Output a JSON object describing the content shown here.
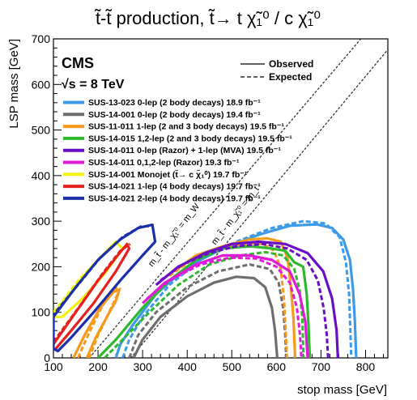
{
  "title": "t̃-t̃ production,  t̃→ t χ̃₁⁰ / c χ̃₁⁰",
  "experiment": "CMS",
  "energy": "√s = 8 TeV",
  "style_legend": {
    "observed": "Observed",
    "expected": "Expected"
  },
  "diagonal_labels": {
    "mw": "m_t̃ - m_χ̃₁⁰ = m_W",
    "mt": "m_t̃ - m_χ̃₁⁰ = m_t"
  },
  "chart_data": {
    "type": "line",
    "title": "t̃-t̃ production,  t̃→ t χ̃₁⁰ / c χ̃₁⁰",
    "xlabel": "stop mass [GeV]",
    "ylabel": "LSP mass [GeV]",
    "xlim": [
      100,
      850
    ],
    "ylim": [
      0,
      700
    ],
    "xticks": [
      100,
      200,
      300,
      400,
      500,
      600,
      700,
      800
    ],
    "yticks": [
      0,
      100,
      200,
      300,
      400,
      500,
      600,
      700
    ],
    "grid": false,
    "legend_position": "top-left",
    "diagonals": [
      {
        "offset": 80.4,
        "label": "mw"
      },
      {
        "offset": 173.5,
        "label": "mt"
      }
    ],
    "series": [
      {
        "name": "SUS-13-023 0-lep (2 body decays) 18.9 fb⁻¹",
        "color": "#3c9ae8",
        "observed": [
          [
            240,
            0
          ],
          [
            250,
            30
          ],
          [
            280,
            75
          ],
          [
            330,
            140
          ],
          [
            400,
            200
          ],
          [
            480,
            240
          ],
          [
            560,
            270
          ],
          [
            630,
            290
          ],
          [
            690,
            293
          ],
          [
            725,
            285
          ],
          [
            750,
            260
          ],
          [
            765,
            215
          ],
          [
            772,
            150
          ],
          [
            776,
            80
          ],
          [
            779,
            0
          ]
        ],
        "expected": [
          [
            255,
            0
          ],
          [
            270,
            40
          ],
          [
            300,
            90
          ],
          [
            360,
            160
          ],
          [
            430,
            215
          ],
          [
            510,
            255
          ],
          [
            590,
            285
          ],
          [
            660,
            300
          ],
          [
            710,
            295
          ],
          [
            742,
            265
          ],
          [
            756,
            210
          ],
          [
            763,
            140
          ],
          [
            766,
            60
          ],
          [
            768,
            0
          ]
        ]
      },
      {
        "name": "SUS-14-001 0-lep (2 body decays) 19.4 fb⁻¹",
        "color": "#6e6e6e",
        "observed": [
          [
            280,
            0
          ],
          [
            300,
            40
          ],
          [
            340,
            90
          ],
          [
            400,
            135
          ],
          [
            460,
            165
          ],
          [
            510,
            178
          ],
          [
            550,
            175
          ],
          [
            575,
            155
          ],
          [
            590,
            110
          ],
          [
            597,
            60
          ],
          [
            602,
            0
          ]
        ],
        "expected": [
          [
            270,
            0
          ],
          [
            290,
            50
          ],
          [
            330,
            100
          ],
          [
            400,
            155
          ],
          [
            470,
            190
          ],
          [
            540,
            205
          ],
          [
            585,
            195
          ],
          [
            605,
            165
          ],
          [
            615,
            110
          ],
          [
            620,
            50
          ],
          [
            622,
            0
          ]
        ]
      },
      {
        "name": "SUS-11-011 1-lep (2 and 3 body decays) 19.5 fb⁻¹",
        "color": "#f59a1d",
        "observed": [
          [
            370,
            190
          ],
          [
            420,
            225
          ],
          [
            480,
            245
          ],
          [
            540,
            260
          ],
          [
            580,
            262
          ],
          [
            610,
            255
          ],
          [
            625,
            220
          ],
          [
            632,
            160
          ],
          [
            638,
            90
          ],
          [
            642,
            0
          ]
        ],
        "expected": [
          [
            360,
            180
          ],
          [
            410,
            215
          ],
          [
            470,
            240
          ],
          [
            530,
            250
          ],
          [
            570,
            250
          ],
          [
            595,
            235
          ],
          [
            610,
            195
          ],
          [
            617,
            130
          ],
          [
            621,
            60
          ],
          [
            624,
            0
          ]
        ],
        "observed_b": [
          [
            145,
            0
          ],
          [
            170,
            50
          ],
          [
            205,
            110
          ],
          [
            235,
            145
          ],
          [
            248,
            150
          ],
          [
            240,
            125
          ],
          [
            220,
            90
          ],
          [
            195,
            45
          ],
          [
            175,
            0
          ]
        ],
        "expected_b": [
          [
            155,
            0
          ],
          [
            180,
            55
          ],
          [
            210,
            115
          ],
          [
            240,
            155
          ],
          [
            244,
            140
          ],
          [
            225,
            100
          ],
          [
            200,
            50
          ],
          [
            180,
            0
          ]
        ]
      },
      {
        "name": "SUS-14-015 1,2-lep (2 and 3 body decays) 19.5 fb⁻¹",
        "color": "#2db82d",
        "observed": [
          [
            200,
            0
          ],
          [
            240,
            40
          ],
          [
            300,
            110
          ],
          [
            360,
            170
          ],
          [
            420,
            215
          ],
          [
            480,
            240
          ],
          [
            540,
            245
          ],
          [
            590,
            240
          ],
          [
            620,
            235
          ],
          [
            640,
            210
          ],
          [
            660,
            200
          ],
          [
            668,
            140
          ],
          [
            672,
            70
          ],
          [
            675,
            0
          ]
        ],
        "expected": [
          [
            215,
            0
          ],
          [
            250,
            35
          ],
          [
            310,
            95
          ],
          [
            380,
            160
          ],
          [
            450,
            205
          ],
          [
            520,
            225
          ],
          [
            575,
            232
          ],
          [
            615,
            225
          ],
          [
            640,
            195
          ],
          [
            652,
            150
          ],
          [
            658,
            90
          ],
          [
            661,
            0
          ]
        ]
      },
      {
        "name": "SUS-14-011 0-lep (Razor) + 1-lep (MVA) 19.5 fb⁻¹",
        "color": "#6a0dc7",
        "observed": [
          [
            330,
            160
          ],
          [
            380,
            200
          ],
          [
            440,
            230
          ],
          [
            500,
            250
          ],
          [
            560,
            255
          ],
          [
            620,
            250
          ],
          [
            670,
            230
          ],
          [
            705,
            190
          ],
          [
            725,
            130
          ],
          [
            735,
            60
          ],
          [
            738,
            0
          ]
        ],
        "expected": [
          [
            340,
            170
          ],
          [
            390,
            205
          ],
          [
            450,
            230
          ],
          [
            510,
            245
          ],
          [
            570,
            250
          ],
          [
            625,
            240
          ],
          [
            668,
            215
          ],
          [
            693,
            170
          ],
          [
            706,
            110
          ],
          [
            713,
            50
          ],
          [
            716,
            0
          ]
        ]
      },
      {
        "name": "SUS-14-011 0,1,2-lep (Razor) 19.3 fb⁻¹",
        "color": "#e01bd7",
        "observed": [
          [
            300,
            120
          ],
          [
            350,
            165
          ],
          [
            420,
            205
          ],
          [
            480,
            225
          ],
          [
            540,
            225
          ],
          [
            590,
            215
          ],
          [
            630,
            190
          ],
          [
            652,
            140
          ],
          [
            665,
            80
          ],
          [
            670,
            0
          ]
        ],
        "expected": [
          [
            310,
            130
          ],
          [
            360,
            170
          ],
          [
            430,
            205
          ],
          [
            495,
            220
          ],
          [
            555,
            218
          ],
          [
            600,
            200
          ],
          [
            630,
            165
          ],
          [
            646,
            110
          ],
          [
            653,
            50
          ],
          [
            656,
            0
          ]
        ]
      },
      {
        "name": "SUS-14-001 Monojet (t̃→ c χ̃₁⁰) 19.7 fb⁻¹",
        "color": "#f2f20a",
        "observed": [
          [
            100,
            95
          ],
          [
            160,
            170
          ],
          [
            205,
            220
          ],
          [
            240,
            255
          ],
          [
            255,
            240
          ],
          [
            215,
            185
          ],
          [
            165,
            130
          ],
          [
            120,
            90
          ],
          [
            100,
            90
          ]
        ],
        "expected": [
          [
            100,
            100
          ],
          [
            160,
            175
          ],
          [
            210,
            225
          ],
          [
            250,
            260
          ]
        ]
      },
      {
        "name": "SUS-14-021 1-lep (4 body decays) 19.7 fb⁻¹",
        "color": "#e6201d",
        "observed": [
          [
            100,
            30
          ],
          [
            150,
            100
          ],
          [
            200,
            170
          ],
          [
            240,
            220
          ],
          [
            265,
            250
          ],
          [
            270,
            240
          ],
          [
            240,
            190
          ],
          [
            190,
            120
          ],
          [
            140,
            60
          ],
          [
            105,
            20
          ]
        ],
        "expected": [
          [
            100,
            35
          ],
          [
            160,
            115
          ],
          [
            210,
            185
          ],
          [
            250,
            235
          ],
          [
            272,
            250
          ]
        ]
      },
      {
        "name": "SUS-14-021 2-lep (4 body decays) 19.7 fb⁻¹",
        "color": "#1a2fa8",
        "observed": [
          [
            100,
            20
          ],
          [
            100,
            90
          ],
          [
            150,
            155
          ],
          [
            200,
            215
          ],
          [
            250,
            260
          ],
          [
            290,
            285
          ],
          [
            322,
            292
          ],
          [
            328,
            255
          ],
          [
            300,
            225
          ],
          [
            250,
            170
          ],
          [
            190,
            100
          ],
          [
            140,
            45
          ],
          [
            110,
            15
          ],
          [
            100,
            20
          ]
        ],
        "expected": [
          [
            100,
            25
          ],
          [
            100,
            95
          ],
          [
            155,
            160
          ],
          [
            205,
            220
          ],
          [
            255,
            265
          ],
          [
            295,
            288
          ],
          [
            325,
            290
          ]
        ]
      }
    ]
  }
}
